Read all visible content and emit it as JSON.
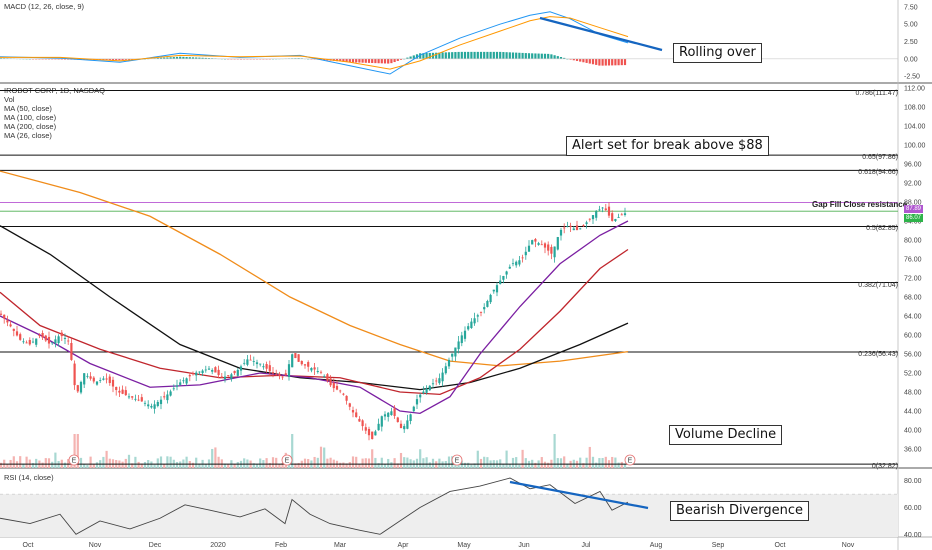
{
  "chart_data": {
    "type": "candlestick",
    "title": "IROBOT CORP, 1D, NASDAQ",
    "indicators": [
      "Vol",
      "MA (50, close)",
      "MA (100, close)",
      "MA (200, close)",
      "MA (26, close)"
    ],
    "time_axis": [
      "Oct",
      "Nov",
      "Dec",
      "2020",
      "Feb",
      "Mar",
      "Apr",
      "May",
      "Jun",
      "Jul",
      "Aug",
      "Sep",
      "Oct",
      "Nov"
    ],
    "price_axis": {
      "ylim": [
        32.0,
        112.0
      ],
      "ticks": [
        "112.00",
        "108.00",
        "104.00",
        "100.00",
        "96.00",
        "92.00",
        "88.00",
        "84.00",
        "80.00",
        "76.00",
        "72.00",
        "68.00",
        "64.00",
        "60.00",
        "56.00",
        "52.00",
        "48.00",
        "44.00",
        "40.00",
        "36.00"
      ]
    },
    "fib_levels": [
      {
        "label": "0.786(111.47)",
        "value": 111.47
      },
      {
        "label": "0.65(97.86)",
        "value": 97.86
      },
      {
        "label": "0.618(94.66)",
        "value": 94.66
      },
      {
        "label": "0.5(82.85)",
        "value": 82.85
      },
      {
        "label": "0.382(71.04)",
        "value": 71.04
      },
      {
        "label": "0.236(56.43)",
        "value": 56.43
      },
      {
        "label": "0(32.82)",
        "value": 32.82
      }
    ],
    "last_price": {
      "label": "87.89",
      "value": 87.89
    },
    "ma_value": {
      "label": "86.07",
      "value": 86.07
    },
    "gap_fill_label": "Gap Fill Close resistance",
    "earnings_marker": "E",
    "price_series": [
      {
        "x": 0,
        "y": 64.5
      },
      {
        "x": 10,
        "y": 62
      },
      {
        "x": 20,
        "y": 59
      },
      {
        "x": 30,
        "y": 58
      },
      {
        "x": 40,
        "y": 60
      },
      {
        "x": 50,
        "y": 58
      },
      {
        "x": 60,
        "y": 60
      },
      {
        "x": 68,
        "y": 59
      },
      {
        "x": 72,
        "y": 54
      },
      {
        "x": 76,
        "y": 47
      },
      {
        "x": 84,
        "y": 52
      },
      {
        "x": 95,
        "y": 50
      },
      {
        "x": 105,
        "y": 51
      },
      {
        "x": 118,
        "y": 48
      },
      {
        "x": 130,
        "y": 47
      },
      {
        "x": 142,
        "y": 46
      },
      {
        "x": 152,
        "y": 45
      },
      {
        "x": 165,
        "y": 47
      },
      {
        "x": 180,
        "y": 50
      },
      {
        "x": 195,
        "y": 52
      },
      {
        "x": 210,
        "y": 53
      },
      {
        "x": 222,
        "y": 51
      },
      {
        "x": 235,
        "y": 52
      },
      {
        "x": 248,
        "y": 55
      },
      {
        "x": 260,
        "y": 54
      },
      {
        "x": 272,
        "y": 52
      },
      {
        "x": 285,
        "y": 51
      },
      {
        "x": 292,
        "y": 56
      },
      {
        "x": 300,
        "y": 54
      },
      {
        "x": 312,
        "y": 53
      },
      {
        "x": 322,
        "y": 52
      },
      {
        "x": 332,
        "y": 49
      },
      {
        "x": 342,
        "y": 48
      },
      {
        "x": 352,
        "y": 44
      },
      {
        "x": 362,
        "y": 41
      },
      {
        "x": 372,
        "y": 38
      },
      {
        "x": 382,
        "y": 43
      },
      {
        "x": 392,
        "y": 44
      },
      {
        "x": 402,
        "y": 40
      },
      {
        "x": 410,
        "y": 43
      },
      {
        "x": 418,
        "y": 47
      },
      {
        "x": 428,
        "y": 49
      },
      {
        "x": 440,
        "y": 51
      },
      {
        "x": 452,
        "y": 56
      },
      {
        "x": 462,
        "y": 60
      },
      {
        "x": 472,
        "y": 63
      },
      {
        "x": 482,
        "y": 65
      },
      {
        "x": 492,
        "y": 69
      },
      {
        "x": 502,
        "y": 72
      },
      {
        "x": 512,
        "y": 75
      },
      {
        "x": 522,
        "y": 76
      },
      {
        "x": 532,
        "y": 80
      },
      {
        "x": 542,
        "y": 79
      },
      {
        "x": 552,
        "y": 77
      },
      {
        "x": 560,
        "y": 82
      },
      {
        "x": 568,
        "y": 83
      },
      {
        "x": 578,
        "y": 82
      },
      {
        "x": 588,
        "y": 84
      },
      {
        "x": 596,
        "y": 86
      },
      {
        "x": 604,
        "y": 87
      },
      {
        "x": 612,
        "y": 84
      },
      {
        "x": 620,
        "y": 85
      },
      {
        "x": 628,
        "y": 86
      }
    ],
    "ma_lines": [
      {
        "name": "MA (200, close)",
        "color": "#f08c1a",
        "points": [
          {
            "x": 0,
            "y": 94.5
          },
          {
            "x": 80,
            "y": 90
          },
          {
            "x": 150,
            "y": 85
          },
          {
            "x": 220,
            "y": 77
          },
          {
            "x": 290,
            "y": 68
          },
          {
            "x": 350,
            "y": 62
          },
          {
            "x": 400,
            "y": 58
          },
          {
            "x": 450,
            "y": 54.5
          },
          {
            "x": 500,
            "y": 53.5
          },
          {
            "x": 560,
            "y": 54.5
          },
          {
            "x": 628,
            "y": 56.5
          }
        ]
      },
      {
        "name": "MA (100, close)",
        "color": "#111111",
        "points": [
          {
            "x": 0,
            "y": 83
          },
          {
            "x": 50,
            "y": 77
          },
          {
            "x": 110,
            "y": 68
          },
          {
            "x": 180,
            "y": 58
          },
          {
            "x": 240,
            "y": 53
          },
          {
            "x": 300,
            "y": 51
          },
          {
            "x": 360,
            "y": 50
          },
          {
            "x": 420,
            "y": 48.5
          },
          {
            "x": 470,
            "y": 50
          },
          {
            "x": 520,
            "y": 53
          },
          {
            "x": 580,
            "y": 58
          },
          {
            "x": 628,
            "y": 62.5
          }
        ]
      },
      {
        "name": "MA (50, close)",
        "color": "#c0262d",
        "points": [
          {
            "x": 0,
            "y": 69
          },
          {
            "x": 40,
            "y": 62
          },
          {
            "x": 100,
            "y": 57
          },
          {
            "x": 160,
            "y": 53
          },
          {
            "x": 220,
            "y": 51
          },
          {
            "x": 280,
            "y": 51.5
          },
          {
            "x": 340,
            "y": 51
          },
          {
            "x": 400,
            "y": 48
          },
          {
            "x": 440,
            "y": 47.5
          },
          {
            "x": 480,
            "y": 51
          },
          {
            "x": 520,
            "y": 57
          },
          {
            "x": 560,
            "y": 65
          },
          {
            "x": 600,
            "y": 74
          },
          {
            "x": 628,
            "y": 78
          }
        ]
      },
      {
        "name": "MA (26, close)",
        "color": "#7b1fa2",
        "points": [
          {
            "x": 0,
            "y": 64
          },
          {
            "x": 40,
            "y": 60
          },
          {
            "x": 90,
            "y": 54
          },
          {
            "x": 150,
            "y": 49
          },
          {
            "x": 200,
            "y": 49.5
          },
          {
            "x": 260,
            "y": 52
          },
          {
            "x": 310,
            "y": 51
          },
          {
            "x": 360,
            "y": 49
          },
          {
            "x": 400,
            "y": 44
          },
          {
            "x": 420,
            "y": 43.5
          },
          {
            "x": 450,
            "y": 47
          },
          {
            "x": 480,
            "y": 56
          },
          {
            "x": 520,
            "y": 66
          },
          {
            "x": 560,
            "y": 75
          },
          {
            "x": 600,
            "y": 81
          },
          {
            "x": 628,
            "y": 84
          }
        ]
      }
    ],
    "macd": {
      "title": "MACD (12, 26, close, 9)",
      "ylim": [
        -3.5,
        8.5
      ],
      "ticks": [
        "7.50",
        "5.00",
        "2.50",
        "0.00",
        "-2.50"
      ],
      "macd_line": [
        {
          "x": 0,
          "y": 0.3
        },
        {
          "x": 60,
          "y": 0.1
        },
        {
          "x": 120,
          "y": -0.5
        },
        {
          "x": 180,
          "y": 0.8
        },
        {
          "x": 240,
          "y": 0.2
        },
        {
          "x": 300,
          "y": 0.5
        },
        {
          "x": 350,
          "y": -1.0
        },
        {
          "x": 390,
          "y": -2.2
        },
        {
          "x": 420,
          "y": 0.5
        },
        {
          "x": 460,
          "y": 3.0
        },
        {
          "x": 500,
          "y": 5.0
        },
        {
          "x": 530,
          "y": 6.3
        },
        {
          "x": 550,
          "y": 6.8
        },
        {
          "x": 570,
          "y": 5.8
        },
        {
          "x": 600,
          "y": 3.5
        },
        {
          "x": 628,
          "y": 2.3
        }
      ],
      "signal_line": [
        {
          "x": 0,
          "y": 0.2
        },
        {
          "x": 60,
          "y": 0.2
        },
        {
          "x": 120,
          "y": -0.3
        },
        {
          "x": 180,
          "y": 0.5
        },
        {
          "x": 240,
          "y": 0.3
        },
        {
          "x": 300,
          "y": 0.4
        },
        {
          "x": 350,
          "y": -0.5
        },
        {
          "x": 390,
          "y": -1.5
        },
        {
          "x": 420,
          "y": -0.3
        },
        {
          "x": 460,
          "y": 2.0
        },
        {
          "x": 500,
          "y": 4.0
        },
        {
          "x": 530,
          "y": 5.5
        },
        {
          "x": 550,
          "y": 6.1
        },
        {
          "x": 570,
          "y": 5.9
        },
        {
          "x": 600,
          "y": 4.5
        },
        {
          "x": 628,
          "y": 3.2
        }
      ]
    },
    "rsi": {
      "title": "RSI (14, close)",
      "ylim": [
        38,
        88
      ],
      "ticks": [
        "80.00",
        "60.00",
        "40.00"
      ],
      "band": [
        30,
        70
      ],
      "line": [
        {
          "x": 0,
          "y": 52
        },
        {
          "x": 30,
          "y": 48
        },
        {
          "x": 60,
          "y": 55
        },
        {
          "x": 76,
          "y": 40
        },
        {
          "x": 100,
          "y": 50
        },
        {
          "x": 130,
          "y": 44
        },
        {
          "x": 160,
          "y": 52
        },
        {
          "x": 185,
          "y": 62
        },
        {
          "x": 210,
          "y": 58
        },
        {
          "x": 240,
          "y": 53
        },
        {
          "x": 265,
          "y": 59
        },
        {
          "x": 285,
          "y": 48
        },
        {
          "x": 292,
          "y": 66
        },
        {
          "x": 310,
          "y": 55
        },
        {
          "x": 330,
          "y": 48
        },
        {
          "x": 360,
          "y": 43
        },
        {
          "x": 380,
          "y": 40
        },
        {
          "x": 400,
          "y": 50
        },
        {
          "x": 420,
          "y": 60
        },
        {
          "x": 450,
          "y": 72
        },
        {
          "x": 480,
          "y": 76
        },
        {
          "x": 510,
          "y": 82
        },
        {
          "x": 530,
          "y": 74
        },
        {
          "x": 550,
          "y": 77
        },
        {
          "x": 575,
          "y": 63
        },
        {
          "x": 600,
          "y": 72
        },
        {
          "x": 612,
          "y": 58
        },
        {
          "x": 628,
          "y": 64
        }
      ]
    },
    "annotations": [
      {
        "id": "rolling",
        "text": "Rolling over"
      },
      {
        "id": "alert",
        "text": "Alert set for break above $88"
      },
      {
        "id": "volume",
        "text": "Volume Decline"
      },
      {
        "id": "divergence",
        "text": "Bearish Divergence"
      }
    ],
    "colors": {
      "up": "#26a69a",
      "down": "#ef5350",
      "trend": "#1565c0",
      "gap_line": "#c06ad8",
      "ma_line": "#4caf50"
    }
  }
}
